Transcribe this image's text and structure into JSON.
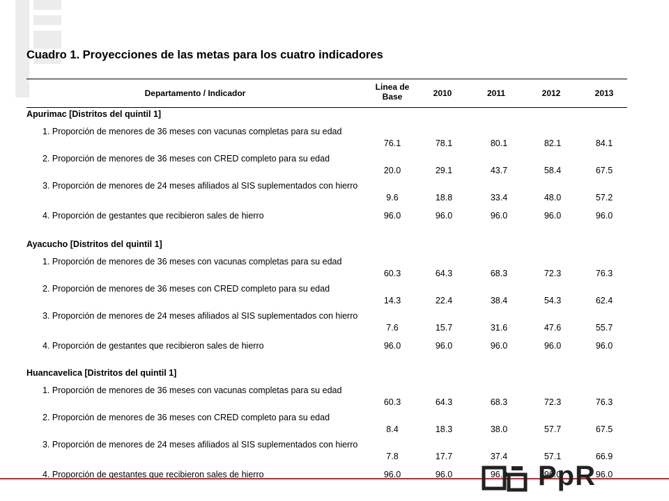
{
  "title": "Cuadro 1. Proyecciones de las metas para los cuatro  indicadores",
  "header": {
    "dept": "Departamento / Indicador",
    "base": "Linea de Base",
    "y2010": "2010",
    "y2011": "2011",
    "y2012": "2012",
    "y2013": "2013"
  },
  "sections": [
    {
      "name": "Apurimac [Distritos del quintil 1]",
      "rows": [
        {
          "label": "1. Proporción de menores de 36 meses con vacunas completas para su edad",
          "v": [
            "76.1",
            "78.1",
            "80.1",
            "82.1",
            "84.1"
          ]
        },
        {
          "label": "2. Proporción de menores de 36 meses con CRED completo para su edad",
          "v": [
            "20.0",
            "29.1",
            "43.7",
            "58.4",
            "67.5"
          ]
        },
        {
          "label": "3. Proporción de menores de 24 meses afiliados al SIS suplementados con hierro",
          "v": [
            "9.6",
            "18.8",
            "33.4",
            "48.0",
            "57.2"
          ]
        },
        {
          "label": "4. Proporción de gestantes que recibieron sales de hierro",
          "v": [
            "96.0",
            "96.0",
            "96.0",
            "96.0",
            "96.0"
          ]
        }
      ]
    },
    {
      "name": "Ayacucho [Distritos del quintil 1]",
      "rows": [
        {
          "label": "1. Proporción de menores de 36 meses con vacunas completas para su edad",
          "v": [
            "60.3",
            "64.3",
            "68.3",
            "72.3",
            "76.3"
          ]
        },
        {
          "label": "2. Proporción de menores de 36 meses con CRED completo para su edad",
          "v": [
            "14.3",
            "22.4",
            "38.4",
            "54.3",
            "62.4"
          ]
        },
        {
          "label": "3. Proporción de menores de 24 meses afiliados al SIS suplementados con hierro",
          "v": [
            "7.6",
            "15.7",
            "31.6",
            "47.6",
            "55.7"
          ]
        },
        {
          "label": "4. Proporción de gestantes que recibieron sales de hierro",
          "v": [
            "96.0",
            "96.0",
            "96.0",
            "96.0",
            "96.0"
          ]
        }
      ]
    },
    {
      "name": "Huancavelica [Distritos del quintil 1]",
      "rows": [
        {
          "label": "1. Proporción de menores de 36 meses con vacunas completas para su edad",
          "v": [
            "60.3",
            "64.3",
            "68.3",
            "72.3",
            "76.3"
          ]
        },
        {
          "label": "2. Proporción de menores de 36 meses con CRED completo para su edad",
          "v": [
            "8.4",
            "18.3",
            "38.0",
            "57.7",
            "67.5"
          ]
        },
        {
          "label": "3. Proporción de menores de 24 meses afiliados al SIS suplementados con hierro",
          "v": [
            "7.8",
            "17.7",
            "37.4",
            "57.1",
            "66.9"
          ]
        },
        {
          "label": "4. Proporción de gestantes que recibieron sales de hierro",
          "v": [
            "96.0",
            "96.0",
            "96.0",
            "96.0",
            "96.0"
          ]
        }
      ]
    }
  ],
  "logo": {
    "text": "PpR",
    "color": "#d6202a"
  }
}
